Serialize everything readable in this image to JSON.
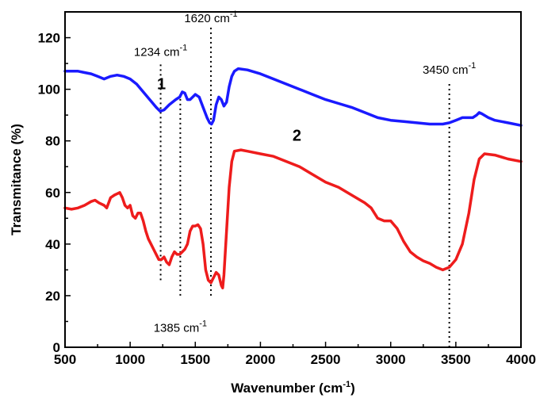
{
  "chart_data": {
    "type": "line",
    "xlabel": "Wavenumber (cm",
    "xlabel_sup": "-1",
    "xlabel_end": ")",
    "ylabel": "Transmitance (%)",
    "xlim": [
      500,
      4000
    ],
    "ylim": [
      0,
      130
    ],
    "xticks": [
      500,
      1000,
      1500,
      2000,
      2500,
      3000,
      3500,
      4000
    ],
    "yticks": [
      0,
      20,
      40,
      60,
      80,
      100,
      120
    ],
    "grid": false,
    "series": [
      {
        "name": "1",
        "color": "#1a1aff",
        "label_at": [
          1240,
          100
        ],
        "points": [
          [
            500,
            107
          ],
          [
            600,
            107
          ],
          [
            650,
            106.5
          ],
          [
            700,
            106
          ],
          [
            750,
            105
          ],
          [
            800,
            104
          ],
          [
            850,
            105
          ],
          [
            900,
            105.5
          ],
          [
            950,
            105
          ],
          [
            1000,
            104
          ],
          [
            1050,
            102
          ],
          [
            1100,
            99
          ],
          [
            1150,
            96
          ],
          [
            1200,
            93
          ],
          [
            1230,
            91.5
          ],
          [
            1260,
            92
          ],
          [
            1300,
            94
          ],
          [
            1350,
            96
          ],
          [
            1380,
            97
          ],
          [
            1400,
            99
          ],
          [
            1420,
            98.5
          ],
          [
            1440,
            96
          ],
          [
            1460,
            96
          ],
          [
            1480,
            97
          ],
          [
            1500,
            98
          ],
          [
            1530,
            97
          ],
          [
            1560,
            93
          ],
          [
            1590,
            89
          ],
          [
            1610,
            87
          ],
          [
            1625,
            86.5
          ],
          [
            1640,
            88
          ],
          [
            1660,
            94
          ],
          [
            1680,
            97
          ],
          [
            1700,
            96
          ],
          [
            1720,
            93.5
          ],
          [
            1740,
            95
          ],
          [
            1760,
            101
          ],
          [
            1780,
            105
          ],
          [
            1800,
            107
          ],
          [
            1830,
            108
          ],
          [
            1900,
            107.5
          ],
          [
            2000,
            106
          ],
          [
            2100,
            104
          ],
          [
            2200,
            102
          ],
          [
            2300,
            100
          ],
          [
            2400,
            98
          ],
          [
            2500,
            96
          ],
          [
            2600,
            94.5
          ],
          [
            2700,
            93
          ],
          [
            2800,
            91
          ],
          [
            2900,
            89
          ],
          [
            3000,
            88
          ],
          [
            3100,
            87.5
          ],
          [
            3200,
            87
          ],
          [
            3300,
            86.5
          ],
          [
            3400,
            86.5
          ],
          [
            3450,
            87
          ],
          [
            3500,
            88
          ],
          [
            3550,
            89
          ],
          [
            3600,
            89
          ],
          [
            3630,
            89
          ],
          [
            3660,
            90
          ],
          [
            3680,
            91
          ],
          [
            3700,
            90.5
          ],
          [
            3750,
            89
          ],
          [
            3800,
            88
          ],
          [
            3900,
            87
          ],
          [
            4000,
            86
          ]
        ]
      },
      {
        "name": "2",
        "color": "#ee1c1c",
        "label_at": [
          2280,
          80
        ],
        "points": [
          [
            500,
            54
          ],
          [
            550,
            53.5
          ],
          [
            600,
            54
          ],
          [
            650,
            55
          ],
          [
            700,
            56.5
          ],
          [
            730,
            57
          ],
          [
            760,
            56
          ],
          [
            800,
            55
          ],
          [
            820,
            54
          ],
          [
            850,
            58
          ],
          [
            880,
            59
          ],
          [
            900,
            59.5
          ],
          [
            920,
            60
          ],
          [
            940,
            58
          ],
          [
            960,
            55
          ],
          [
            980,
            54
          ],
          [
            1000,
            55
          ],
          [
            1020,
            51
          ],
          [
            1040,
            50
          ],
          [
            1060,
            52
          ],
          [
            1080,
            52
          ],
          [
            1100,
            49
          ],
          [
            1120,
            45
          ],
          [
            1140,
            42
          ],
          [
            1160,
            40
          ],
          [
            1180,
            38
          ],
          [
            1200,
            36
          ],
          [
            1220,
            34
          ],
          [
            1240,
            34
          ],
          [
            1260,
            35
          ],
          [
            1280,
            33
          ],
          [
            1300,
            32
          ],
          [
            1320,
            35
          ],
          [
            1340,
            37
          ],
          [
            1360,
            36
          ],
          [
            1380,
            36
          ],
          [
            1400,
            37
          ],
          [
            1420,
            38
          ],
          [
            1440,
            40
          ],
          [
            1460,
            45
          ],
          [
            1480,
            47
          ],
          [
            1500,
            47
          ],
          [
            1520,
            47.5
          ],
          [
            1540,
            46
          ],
          [
            1560,
            40
          ],
          [
            1580,
            30
          ],
          [
            1600,
            26
          ],
          [
            1620,
            25
          ],
          [
            1640,
            27
          ],
          [
            1660,
            29
          ],
          [
            1680,
            28
          ],
          [
            1700,
            24
          ],
          [
            1710,
            23
          ],
          [
            1720,
            28
          ],
          [
            1740,
            45
          ],
          [
            1760,
            62
          ],
          [
            1780,
            72
          ],
          [
            1800,
            76
          ],
          [
            1850,
            76.5
          ],
          [
            1900,
            76
          ],
          [
            2000,
            75
          ],
          [
            2100,
            74
          ],
          [
            2200,
            72
          ],
          [
            2300,
            70
          ],
          [
            2400,
            67
          ],
          [
            2500,
            64
          ],
          [
            2600,
            62
          ],
          [
            2700,
            59
          ],
          [
            2800,
            56
          ],
          [
            2850,
            54
          ],
          [
            2900,
            50
          ],
          [
            2950,
            49
          ],
          [
            3000,
            49
          ],
          [
            3050,
            46
          ],
          [
            3100,
            41
          ],
          [
            3150,
            37
          ],
          [
            3200,
            35
          ],
          [
            3250,
            33.5
          ],
          [
            3300,
            32.5
          ],
          [
            3350,
            31
          ],
          [
            3400,
            30
          ],
          [
            3450,
            31
          ],
          [
            3500,
            34
          ],
          [
            3550,
            40
          ],
          [
            3600,
            52
          ],
          [
            3640,
            65
          ],
          [
            3680,
            73
          ],
          [
            3720,
            75
          ],
          [
            3800,
            74.5
          ],
          [
            3900,
            73
          ],
          [
            4000,
            72
          ]
        ]
      }
    ],
    "annotations": [
      {
        "x": 1234,
        "label": "1234 cm",
        "sup": "-1",
        "y_from": 26,
        "y_to": 110,
        "label_y": 113
      },
      {
        "x": 1620,
        "label": "1620 cm",
        "sup": "-1",
        "y_from": 20,
        "y_to": 124,
        "label_y": 126
      },
      {
        "x": 1385,
        "label": "1385 cm",
        "sup": "-1",
        "y_from": 20,
        "y_to": 98,
        "label_y": 6,
        "label_below": true
      },
      {
        "x": 3450,
        "label": "3450 cm",
        "sup": "-1",
        "y_from": 0,
        "y_to": 103,
        "label_y": 106
      }
    ]
  }
}
